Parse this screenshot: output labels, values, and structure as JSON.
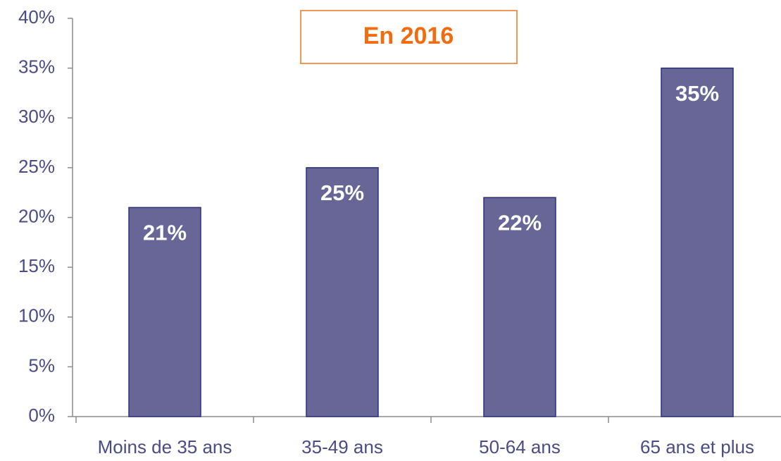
{
  "chart_data": {
    "type": "bar",
    "annotation": "En 2016",
    "categories": [
      "Moins de 35 ans",
      "35-49 ans",
      "50-64 ans",
      "65 ans et plus"
    ],
    "values": [
      21,
      25,
      22,
      35
    ],
    "value_labels": [
      "21%",
      "25%",
      "22%",
      "35%"
    ],
    "color": "#676696",
    "ylim": [
      0,
      40
    ],
    "yticks": [
      {
        "value": 0,
        "label": "0%"
      },
      {
        "value": 5,
        "label": "5%"
      },
      {
        "value": 10,
        "label": "10%"
      },
      {
        "value": 15,
        "label": "15%"
      },
      {
        "value": 20,
        "label": "20%"
      },
      {
        "value": 25,
        "label": "25%"
      },
      {
        "value": 30,
        "label": "30%"
      },
      {
        "value": 35,
        "label": "35%"
      },
      {
        "value": 40,
        "label": "40%"
      }
    ],
    "grid": false
  }
}
